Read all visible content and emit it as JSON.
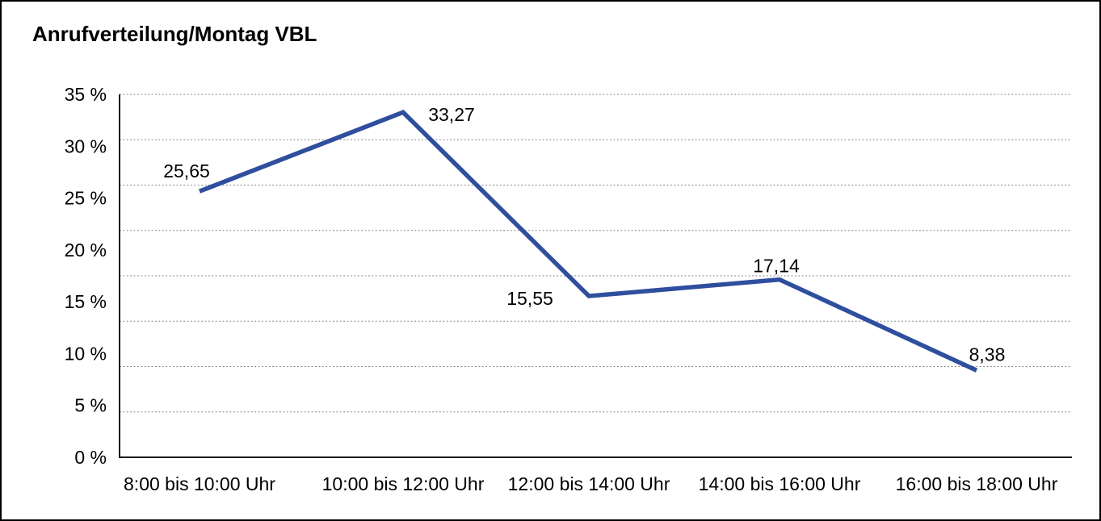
{
  "window": {
    "background": "#ffffff",
    "border_color": "#000000"
  },
  "chart_data": {
    "type": "line",
    "title": "Anrufverteilung/Montag VBL",
    "categories": [
      "8:00 bis 10:00 Uhr",
      "10:00 bis 12:00 Uhr",
      "12:00 bis 14:00 Uhr",
      "14:00 bis 16:00 Uhr",
      "16:00 bis 18:00 Uhr"
    ],
    "series": [
      {
        "values": [
          25.65,
          33.27,
          15.55,
          17.14,
          8.38
        ],
        "labels": [
          "25,65",
          "33,27",
          "15,55",
          "17,14",
          "8,38"
        ],
        "color": "#2F4F9E"
      }
    ],
    "xlabel": "",
    "ylabel": "",
    "ylim": [
      0,
      35
    ],
    "y_ticks": [
      {
        "value": 35,
        "label": "35 %"
      },
      {
        "value": 30,
        "label": "30 %"
      },
      {
        "value": 25,
        "label": "25 %"
      },
      {
        "value": 20,
        "label": "20 %"
      },
      {
        "value": 15,
        "label": "15 %"
      },
      {
        "value": 10,
        "label": "10 %"
      },
      {
        "value": 5,
        "label": "5 %"
      },
      {
        "value": 0,
        "label": "0 %"
      }
    ],
    "grid": {
      "horizontal": true,
      "style": "dotted",
      "divisions": 8,
      "color": "#7d7d7d"
    },
    "legend": "none",
    "axis_color": "#1a1a1a",
    "text_color": "#000000"
  }
}
